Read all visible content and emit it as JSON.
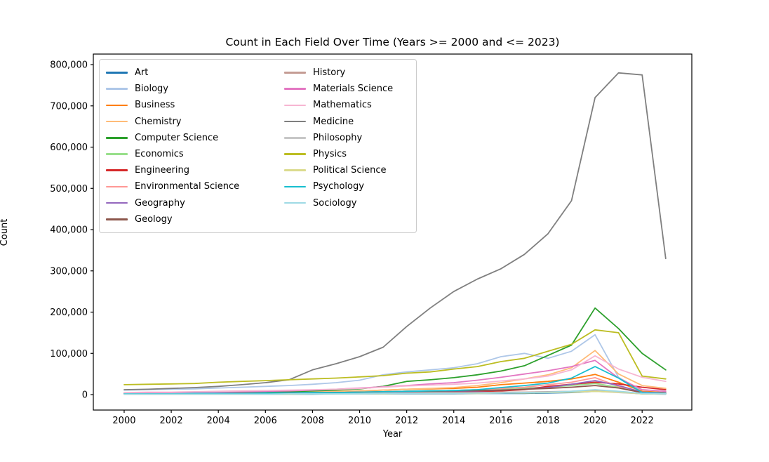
{
  "chart_data": {
    "type": "line",
    "title": "Count in Each Field Over Time (Years >= 2000 and <= 2023)",
    "xlabel": "Year",
    "ylabel": "Count",
    "x": [
      2000,
      2001,
      2002,
      2003,
      2004,
      2005,
      2006,
      2007,
      2008,
      2009,
      2010,
      2011,
      2012,
      2013,
      2014,
      2015,
      2016,
      2017,
      2018,
      2019,
      2020,
      2021,
      2022,
      2023
    ],
    "xticks": [
      2000,
      2002,
      2004,
      2006,
      2008,
      2010,
      2012,
      2014,
      2016,
      2018,
      2020,
      2022
    ],
    "yticks": [
      0,
      100000,
      200000,
      300000,
      400000,
      500000,
      600000,
      700000,
      800000
    ],
    "xlim": [
      1998.69,
      2024.11
    ],
    "ylim": [
      -37400,
      825600
    ],
    "grid": false,
    "legend_position": "upper-left",
    "legend_columns": 2,
    "series": [
      {
        "name": "Art",
        "color": "#1f77b4",
        "values": [
          1000,
          1000,
          1000,
          1000,
          1000,
          1000,
          1000,
          1000,
          1000,
          2000,
          2000,
          2000,
          2000,
          2000,
          2000,
          3000,
          3000,
          3000,
          4000,
          5000,
          8000,
          6000,
          2000,
          1000
        ]
      },
      {
        "name": "Biology",
        "color": "#aec7e8",
        "values": [
          11000,
          12000,
          13000,
          14000,
          16000,
          18000,
          20000,
          22000,
          25000,
          29000,
          35000,
          48000,
          55000,
          60000,
          65000,
          75000,
          92000,
          100000,
          88000,
          105000,
          145000,
          42000,
          8000,
          5000
        ]
      },
      {
        "name": "Business",
        "color": "#ff7f0e",
        "values": [
          2000,
          2000,
          2000,
          3000,
          3000,
          4000,
          4000,
          5000,
          6000,
          7000,
          9000,
          11000,
          13000,
          14000,
          15000,
          18000,
          24000,
          28000,
          32000,
          38000,
          49000,
          30000,
          8000,
          5000
        ]
      },
      {
        "name": "Chemistry",
        "color": "#ffbb78",
        "values": [
          3000,
          3000,
          3000,
          4000,
          4000,
          5000,
          5000,
          6000,
          7000,
          8000,
          9000,
          11000,
          13000,
          15000,
          17000,
          22000,
          29000,
          38000,
          48000,
          65000,
          107000,
          50000,
          22000,
          15000
        ]
      },
      {
        "name": "Computer Science",
        "color": "#2ca02c",
        "values": [
          3000,
          3000,
          4000,
          4000,
          5000,
          5000,
          6000,
          7000,
          9000,
          11000,
          14000,
          20000,
          32000,
          36000,
          41000,
          48000,
          57000,
          70000,
          95000,
          120000,
          210000,
          160000,
          100000,
          60000
        ]
      },
      {
        "name": "Economics",
        "color": "#98df8a",
        "values": [
          2000,
          2000,
          2000,
          2000,
          3000,
          3000,
          3000,
          4000,
          4000,
          5000,
          6000,
          7000,
          8000,
          9000,
          10000,
          12000,
          14000,
          16000,
          18000,
          22000,
          27000,
          18000,
          6000,
          4000
        ]
      },
      {
        "name": "Engineering",
        "color": "#d62728",
        "values": [
          3000,
          3000,
          3000,
          3000,
          3000,
          4000,
          4000,
          4000,
          4000,
          5000,
          5000,
          5000,
          5000,
          5000,
          6000,
          7000,
          9000,
          12000,
          20000,
          25000,
          30000,
          26000,
          18000,
          12000
        ]
      },
      {
        "name": "Environmental Science",
        "color": "#ff9896",
        "values": [
          2000,
          2000,
          2000,
          2000,
          3000,
          3000,
          3000,
          4000,
          4000,
          5000,
          6000,
          7000,
          8000,
          9000,
          10000,
          12000,
          15000,
          18000,
          24000,
          30000,
          41000,
          20000,
          6000,
          4000
        ]
      },
      {
        "name": "Geography",
        "color": "#9467bd",
        "values": [
          1000,
          1000,
          1000,
          2000,
          2000,
          2000,
          2000,
          3000,
          3000,
          3000,
          4000,
          5000,
          6000,
          7000,
          8000,
          9000,
          11000,
          13000,
          17000,
          25000,
          34000,
          22000,
          6000,
          4000
        ]
      },
      {
        "name": "Geology",
        "color": "#8c564b",
        "values": [
          3000,
          3000,
          3000,
          3000,
          4000,
          4000,
          4000,
          5000,
          5000,
          5000,
          6000,
          7000,
          8000,
          8000,
          9000,
          10000,
          11000,
          13000,
          15000,
          18000,
          22000,
          16000,
          5000,
          3000
        ]
      },
      {
        "name": "History",
        "color": "#c49c94",
        "values": [
          2000,
          2000,
          2000,
          2000,
          2000,
          3000,
          3000,
          3000,
          3000,
          3000,
          4000,
          4000,
          4000,
          5000,
          5000,
          5000,
          6000,
          6000,
          7000,
          8000,
          10000,
          7000,
          3000,
          2000
        ]
      },
      {
        "name": "Materials Science",
        "color": "#e377c2",
        "values": [
          4000,
          4000,
          5000,
          5000,
          6000,
          7000,
          8000,
          9000,
          11000,
          13000,
          16000,
          19000,
          22000,
          26000,
          29000,
          35000,
          42000,
          50000,
          58000,
          68000,
          83000,
          40000,
          12000,
          8000
        ]
      },
      {
        "name": "Mathematics",
        "color": "#f7b6d2",
        "values": [
          5000,
          6000,
          6000,
          7000,
          8000,
          9000,
          10000,
          11000,
          12000,
          13000,
          15000,
          18000,
          21000,
          23000,
          25000,
          28000,
          33000,
          38000,
          45000,
          60000,
          94000,
          62000,
          42000,
          32000
        ]
      },
      {
        "name": "Medicine",
        "color": "#7f7f7f",
        "values": [
          12000,
          13000,
          15000,
          17000,
          20000,
          24000,
          29000,
          36000,
          60000,
          75000,
          92000,
          115000,
          165000,
          210000,
          250000,
          280000,
          305000,
          340000,
          390000,
          470000,
          720000,
          780000,
          775000,
          330000
        ]
      },
      {
        "name": "Philosophy",
        "color": "#c7c7c7",
        "values": [
          1000,
          1000,
          1000,
          1000,
          1000,
          1000,
          2000,
          2000,
          2000,
          2000,
          2000,
          3000,
          3000,
          3000,
          3000,
          4000,
          4000,
          5000,
          5000,
          6000,
          8000,
          5000,
          2000,
          1000
        ]
      },
      {
        "name": "Physics",
        "color": "#bcbd22",
        "values": [
          24000,
          25000,
          26000,
          27000,
          30000,
          32000,
          34000,
          36000,
          38000,
          40000,
          43000,
          46000,
          52000,
          55000,
          62000,
          68000,
          80000,
          88000,
          105000,
          122000,
          157000,
          150000,
          45000,
          38000
        ]
      },
      {
        "name": "Political Science",
        "color": "#dbdb8d",
        "values": [
          1000,
          1000,
          1000,
          1000,
          1000,
          1000,
          1000,
          1000,
          2000,
          2000,
          2000,
          2000,
          3000,
          3000,
          3000,
          3000,
          4000,
          4000,
          5000,
          6000,
          8000,
          6000,
          2000,
          2000
        ]
      },
      {
        "name": "Psychology",
        "color": "#17becf",
        "values": [
          2000,
          2000,
          2000,
          3000,
          3000,
          3000,
          4000,
          4000,
          5000,
          5000,
          6000,
          7000,
          8000,
          9000,
          10000,
          12000,
          17000,
          22000,
          28000,
          40000,
          68000,
          40000,
          5000,
          3000
        ]
      },
      {
        "name": "Sociology",
        "color": "#9edae5",
        "values": [
          1000,
          1000,
          1000,
          1000,
          1000,
          1000,
          1000,
          2000,
          2000,
          2000,
          2000,
          3000,
          3000,
          3000,
          3000,
          4000,
          4000,
          5000,
          6000,
          8000,
          12000,
          8000,
          3000,
          2000
        ]
      }
    ]
  }
}
